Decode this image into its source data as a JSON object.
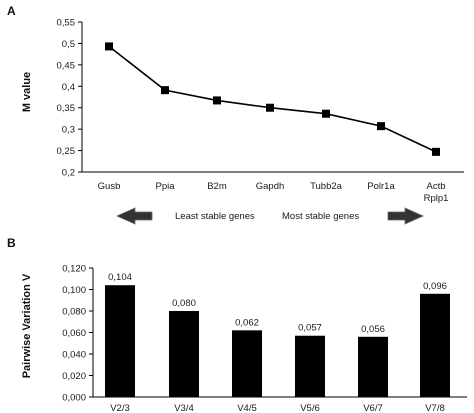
{
  "panels": {
    "a_label": "A",
    "b_label": "B",
    "stability_left": "Least stable genes",
    "stability_right": "Most stable genes"
  },
  "chart_data": [
    {
      "type": "line",
      "ylabel": "M value",
      "xlabel": "",
      "ylim": [
        0.2,
        0.55
      ],
      "yticks": [
        "0,2",
        "0,25",
        "0,3",
        "0,35",
        "0,4",
        "0,45",
        "0,5",
        "0,55"
      ],
      "categories": [
        [
          "Gusb"
        ],
        [
          "Ppia"
        ],
        [
          "B2m"
        ],
        [
          "Gapdh"
        ],
        [
          "Tubb2a"
        ],
        [
          "Polr1a"
        ],
        [
          "Actb",
          "Rplp1"
        ]
      ],
      "values": [
        0.493,
        0.391,
        0.367,
        0.35,
        0.336,
        0.307,
        0.247
      ],
      "grid": false,
      "legend": "none",
      "color": "#000000"
    },
    {
      "type": "bar",
      "ylabel": "Pairwise Variation V",
      "xlabel": "",
      "ylim": [
        0,
        0.12
      ],
      "yticks": [
        "0,000",
        "0,020",
        "0,040",
        "0,060",
        "0,080",
        "0,100",
        "0,120"
      ],
      "categories": [
        "V2/3",
        "V3/4",
        "V4/5",
        "V5/6",
        "V6/7",
        "V7/8"
      ],
      "values": [
        0.104,
        0.08,
        0.062,
        0.057,
        0.056,
        0.096
      ],
      "data_labels": [
        "0,104",
        "0,080",
        "0,062",
        "0,057",
        "0,056",
        "0,096"
      ],
      "grid": false,
      "legend": "none",
      "color": "#000000"
    }
  ]
}
